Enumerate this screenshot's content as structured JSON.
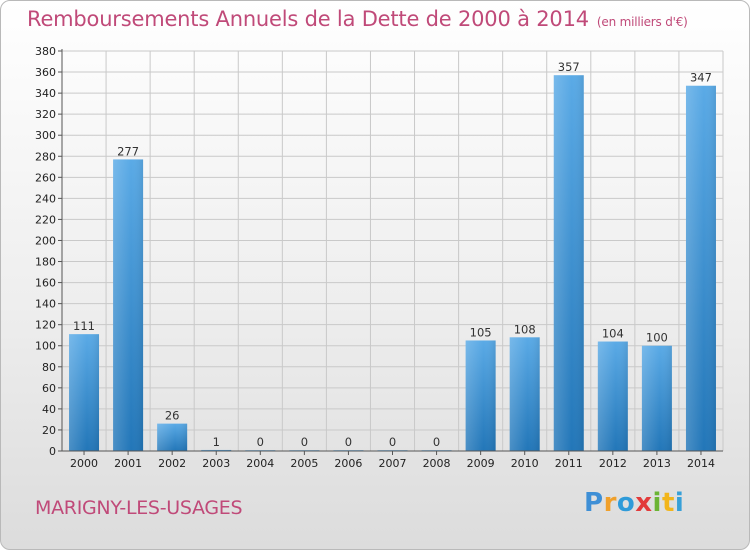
{
  "header": {
    "title": "Remboursements Annuels de la Dette de 2000 à 2014",
    "unit": "(en milliers d'€)"
  },
  "footer": {
    "town": "MARIGNY-LES-USAGES",
    "logo": [
      "P",
      "r",
      "o",
      "x",
      "i",
      "t",
      "i"
    ]
  },
  "colors": {
    "title": "#c04a79",
    "bar_top": "#5aaae6",
    "bar_bottom": "#2276b8"
  },
  "chart_data": {
    "type": "bar",
    "title": "Remboursements Annuels de la Dette de 2000 à 2014",
    "xlabel": "",
    "ylabel": "",
    "categories": [
      "2000",
      "2001",
      "2002",
      "2003",
      "2004",
      "2005",
      "2006",
      "2007",
      "2008",
      "2009",
      "2010",
      "2011",
      "2012",
      "2013",
      "2014"
    ],
    "values": [
      111,
      277,
      26,
      1,
      0,
      0,
      0,
      0,
      0,
      105,
      108,
      357,
      104,
      100,
      347
    ],
    "ylim": [
      0,
      380
    ],
    "yticks": [
      0,
      20,
      40,
      60,
      80,
      100,
      120,
      140,
      160,
      180,
      200,
      220,
      240,
      260,
      280,
      300,
      320,
      340,
      360,
      380
    ],
    "grid": true,
    "legend": "none"
  }
}
